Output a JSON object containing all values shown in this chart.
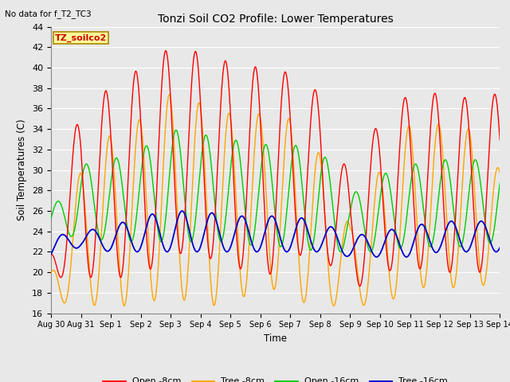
{
  "title": "Tonzi Soil CO2 Profile: Lower Temperatures",
  "subtitle": "No data for f_T2_TC3",
  "ylabel": "Soil Temperatures (C)",
  "xlabel": "Time",
  "annotation": "TZ_soilco2",
  "ylim": [
    16,
    44
  ],
  "yticks": [
    16,
    18,
    20,
    22,
    24,
    26,
    28,
    30,
    32,
    34,
    36,
    38,
    40,
    42,
    44
  ],
  "xtick_labels": [
    "Aug 30",
    "Aug 31",
    "Sep 1",
    "Sep 2",
    "Sep 3",
    "Sep 4",
    "Sep 5",
    "Sep 6",
    "Sep 7",
    "Sep 8",
    "Sep 9",
    "Sep 10",
    "Sep 11",
    "Sep 12",
    "Sep 13",
    "Sep 14"
  ],
  "n_days": 15,
  "colors": {
    "open_8cm": "#ff0000",
    "tree_8cm": "#ffa500",
    "open_16cm": "#00cc00",
    "tree_16cm": "#0000cc"
  },
  "legend_labels": [
    "Open -8cm",
    "Tree -8cm",
    "Open -16cm",
    "Tree -16cm"
  ],
  "bg_color": "#e8e8e8",
  "plot_bg_color": "#e8e8e8",
  "grid_color": "#ffffff",
  "open_8_peaks": [
    22.5,
    36.5,
    38.0,
    40.0,
    42.0,
    41.5,
    40.5,
    40.0,
    39.5,
    37.5,
    29.0,
    35.0,
    37.5,
    37.5,
    37.0,
    37.5
  ],
  "open_8_troughs": [
    19.5,
    19.5,
    19.5,
    19.5,
    22.0,
    21.5,
    21.0,
    19.0,
    21.5,
    22.0,
    18.0,
    20.0,
    20.5,
    20.0,
    20.0,
    20.0
  ],
  "tree_8_peaks": [
    20.0,
    30.0,
    33.5,
    35.0,
    37.5,
    36.5,
    35.5,
    35.5,
    35.0,
    31.5,
    24.5,
    30.0,
    34.5,
    34.5,
    34.0,
    30.0
  ],
  "tree_8_troughs": [
    17.0,
    17.0,
    16.5,
    17.0,
    17.5,
    17.0,
    16.5,
    19.0,
    17.5,
    16.5,
    17.0,
    16.5,
    18.5,
    18.5,
    18.5,
    19.0
  ],
  "open_16_peaks": [
    26.0,
    30.5,
    31.0,
    32.0,
    34.0,
    33.5,
    33.0,
    32.5,
    32.5,
    32.0,
    27.5,
    29.5,
    30.5,
    31.0,
    31.0,
    31.0
  ],
  "open_16_troughs": [
    23.5,
    23.5,
    23.0,
    23.0,
    23.0,
    23.0,
    23.0,
    22.5,
    22.5,
    22.0,
    22.0,
    22.0,
    22.5,
    22.5,
    22.5,
    23.0
  ],
  "tree_16_peaks": [
    23.5,
    24.0,
    24.5,
    25.5,
    26.0,
    26.0,
    25.5,
    25.5,
    25.5,
    25.0,
    23.5,
    24.0,
    24.5,
    25.0,
    25.0,
    25.0
  ],
  "tree_16_troughs": [
    21.5,
    22.5,
    22.0,
    22.0,
    22.0,
    22.0,
    22.0,
    22.0,
    22.0,
    22.0,
    21.5,
    21.5,
    21.5,
    22.0,
    22.0,
    22.0
  ],
  "peak_phase": 0.58,
  "phase_shift_tree8": 0.12,
  "phase_shift_open16": 0.35,
  "phase_shift_tree16": 0.55
}
